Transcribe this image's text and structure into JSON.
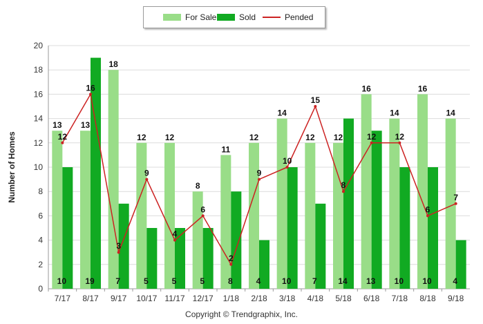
{
  "chart_data": {
    "type": "bar",
    "categories": [
      "7/17",
      "8/17",
      "9/17",
      "10/17",
      "11/17",
      "12/17",
      "1/18",
      "2/18",
      "3/18",
      "4/18",
      "5/18",
      "6/18",
      "7/18",
      "8/18",
      "9/18"
    ],
    "series": [
      {
        "name": "For Sale",
        "type": "bar",
        "color": "#99dd88",
        "values": [
          13,
          13,
          18,
          12,
          12,
          8,
          11,
          12,
          14,
          12,
          12,
          16,
          14,
          16,
          14
        ]
      },
      {
        "name": "Sold",
        "type": "bar",
        "color": "#11aa22",
        "values": [
          10,
          19,
          7,
          5,
          5,
          5,
          8,
          4,
          10,
          7,
          14,
          13,
          10,
          10,
          4
        ]
      },
      {
        "name": "Pended",
        "type": "line",
        "color": "#cc2222",
        "values": [
          12,
          16,
          3,
          9,
          4,
          6,
          2,
          9,
          10,
          15,
          8,
          12,
          12,
          6,
          7
        ]
      }
    ],
    "ylabel": "Number of Homes",
    "xlabel": "",
    "ylim": [
      0,
      20
    ],
    "yticks": [
      0,
      2,
      4,
      6,
      8,
      10,
      12,
      14,
      16,
      18,
      20
    ],
    "grid": true,
    "legend_position": "top-center"
  },
  "footer": {
    "copyright": "Copyright © Trendgraphix, Inc."
  }
}
